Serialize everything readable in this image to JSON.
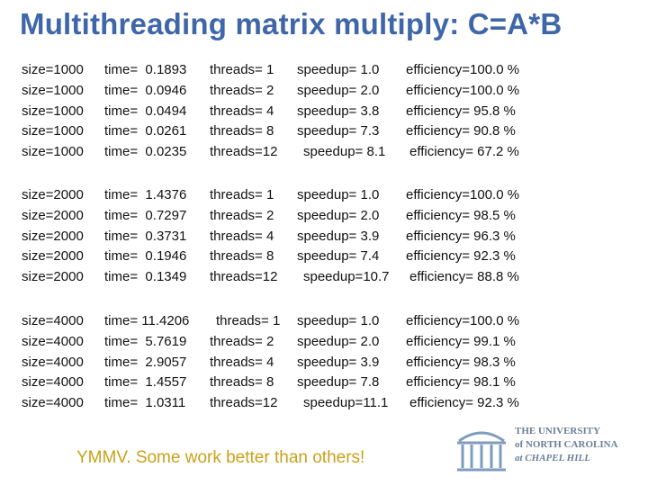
{
  "slide": {
    "title": "Multithreading matrix multiply: C=A*B",
    "footer": "YMMV. Some work better than others!"
  },
  "groups": [
    {
      "rows": [
        {
          "size": "size=1000",
          "time": "time=  0.1893",
          "threads": "threads= 1",
          "speedup": "speedup= 1.0",
          "efficiency": "efficiency=100.0 %"
        },
        {
          "size": "size=1000",
          "time": "time=  0.0946",
          "threads": "threads= 2",
          "speedup": "speedup= 2.0",
          "efficiency": "efficiency=100.0 %"
        },
        {
          "size": "size=1000",
          "time": "time=  0.0494",
          "threads": "threads= 4",
          "speedup": "speedup= 3.8",
          "efficiency": "efficiency= 95.8 %"
        },
        {
          "size": "size=1000",
          "time": "time=  0.0261",
          "threads": "threads= 8",
          "speedup": "speedup= 7.3",
          "efficiency": "efficiency= 90.8 %"
        },
        {
          "size": "size=1000",
          "time": "time=  0.0235",
          "threads": "threads=12",
          "speedup": "speedup= 8.1",
          "efficiency": "efficiency= 67.2 %"
        }
      ]
    },
    {
      "rows": [
        {
          "size": "size=2000",
          "time": "time=  1.4376",
          "threads": "threads= 1",
          "speedup": "speedup= 1.0",
          "efficiency": "efficiency=100.0 %"
        },
        {
          "size": "size=2000",
          "time": "time=  0.7297",
          "threads": "threads= 2",
          "speedup": "speedup= 2.0",
          "efficiency": "efficiency= 98.5 %"
        },
        {
          "size": "size=2000",
          "time": "time=  0.3731",
          "threads": "threads= 4",
          "speedup": "speedup= 3.9",
          "efficiency": "efficiency= 96.3 %"
        },
        {
          "size": "size=2000",
          "time": "time=  0.1946",
          "threads": "threads= 8",
          "speedup": "speedup= 7.4",
          "efficiency": "efficiency= 92.3 %"
        },
        {
          "size": "size=2000",
          "time": "time=  0.1349",
          "threads": "threads=12",
          "speedup": "speedup=10.7",
          "efficiency": "efficiency= 88.8 %"
        }
      ]
    },
    {
      "rows": [
        {
          "size": "size=4000",
          "time": "time= 11.4206",
          "threads": "threads= 1",
          "speedup": "speedup= 1.0",
          "efficiency": "efficiency=100.0 %"
        },
        {
          "size": "size=4000",
          "time": "time=  5.7619",
          "threads": "threads= 2",
          "speedup": "speedup= 2.0",
          "efficiency": "efficiency= 99.1 %"
        },
        {
          "size": "size=4000",
          "time": "time=  2.9057",
          "threads": "threads= 4",
          "speedup": "speedup= 3.9",
          "efficiency": "efficiency= 98.3 %"
        },
        {
          "size": "size=4000",
          "time": "time=  1.4557",
          "threads": "threads= 8",
          "speedup": "speedup= 7.8",
          "efficiency": "efficiency= 98.1 %"
        },
        {
          "size": "size=4000",
          "time": "time=  1.0311",
          "threads": "threads=12",
          "speedup": "speedup=11.1",
          "efficiency": "efficiency= 92.3 %"
        }
      ]
    }
  ],
  "logo": {
    "line1": "THE UNIVERSITY",
    "line2": "of NORTH CAROLINA",
    "line3": "at CHAPEL HILL"
  },
  "colors": {
    "title": "#3e66a8",
    "footer": "#c9a11a",
    "logo": "#6a7f99"
  }
}
